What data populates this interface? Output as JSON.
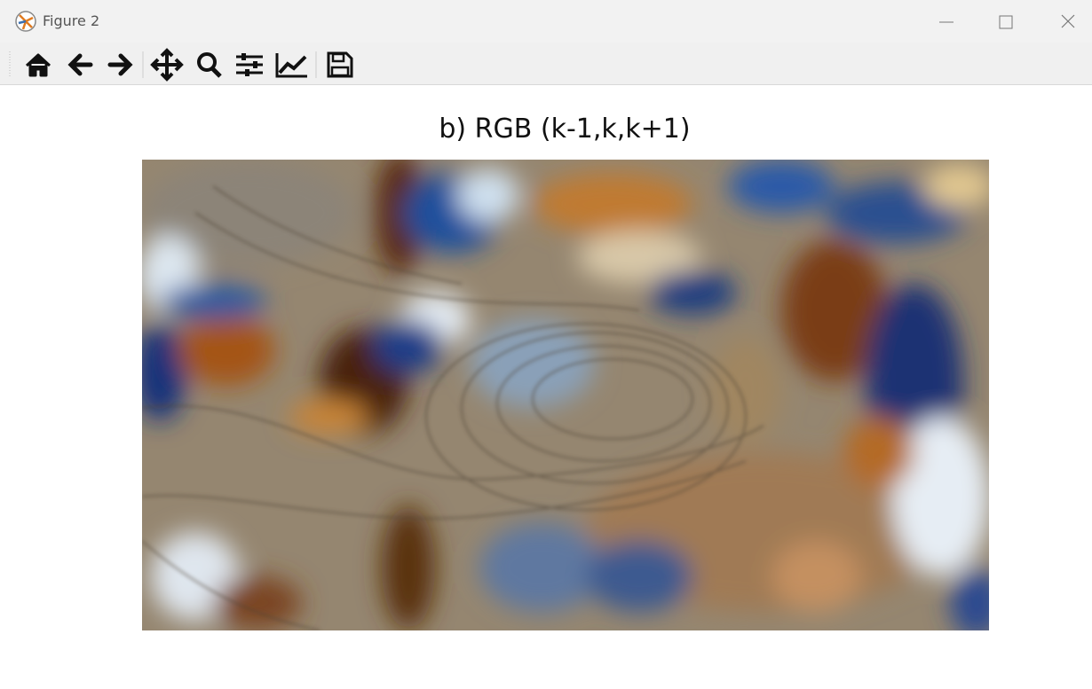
{
  "window": {
    "title": "Figure 2"
  },
  "figure": {
    "title": "b) RGB (k-1,k,k+1)"
  }
}
